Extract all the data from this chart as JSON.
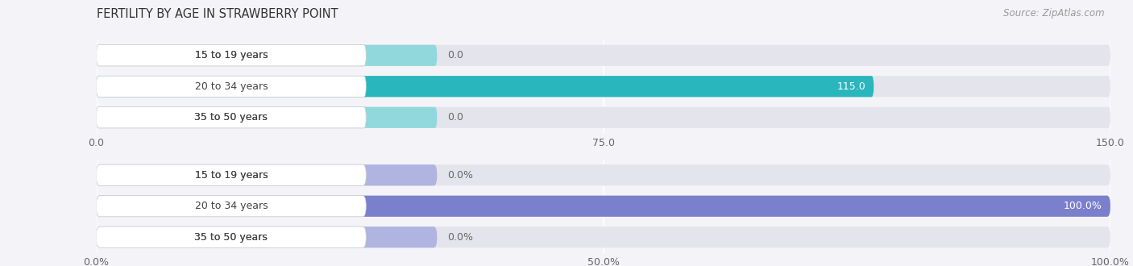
{
  "title": "FERTILITY BY AGE IN STRAWBERRY POINT",
  "source": "Source: ZipAtlas.com",
  "top_chart": {
    "categories": [
      "15 to 19 years",
      "20 to 34 years",
      "35 to 50 years"
    ],
    "values": [
      0.0,
      115.0,
      0.0
    ],
    "xlim": [
      0,
      150.0
    ],
    "xticks": [
      0.0,
      75.0,
      150.0
    ],
    "xtick_labels": [
      "0.0",
      "75.0",
      "150.0"
    ],
    "bar_color_main": "#29b6bc",
    "bar_color_light": "#90d8dc",
    "bar_bg_color": "#e4e4ec"
  },
  "bottom_chart": {
    "categories": [
      "15 to 19 years",
      "20 to 34 years",
      "35 to 50 years"
    ],
    "values": [
      0.0,
      100.0,
      0.0
    ],
    "xlim": [
      0,
      100.0
    ],
    "xticks": [
      0.0,
      50.0,
      100.0
    ],
    "xtick_labels": [
      "0.0%",
      "50.0%",
      "100.0%"
    ],
    "bar_color_main": "#7b80cc",
    "bar_color_light": "#b0b4e0",
    "bar_bg_color": "#e4e4ec"
  },
  "fig_bg_color": "#f4f4f8",
  "bar_height": 0.68,
  "label_fontsize": 9,
  "tick_fontsize": 9,
  "title_fontsize": 10.5,
  "source_fontsize": 8.5,
  "label_box_color": "#ffffff",
  "label_text_color": "#444444",
  "value_text_color_inside": "#ffffff",
  "value_text_color_outside": "#666666"
}
